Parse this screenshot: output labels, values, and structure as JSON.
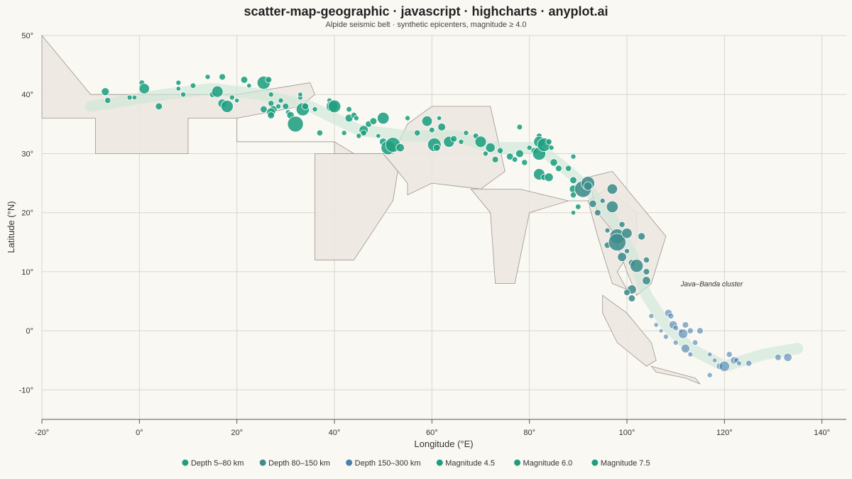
{
  "chart_data": {
    "type": "scatter",
    "title": "scatter-map-geographic · javascript · highcharts · anyplot.ai",
    "subtitle": "Alpide seismic belt · synthetic epicenters, magnitude ≥ 4.0",
    "xlabel": "Longitude (°E)",
    "ylabel": "Latitude (°N)",
    "xlim": [
      -20,
      145
    ],
    "ylim": [
      -15,
      50
    ],
    "x_ticks": [
      -20,
      0,
      20,
      40,
      60,
      80,
      100,
      120,
      140
    ],
    "x_tick_labels": [
      "-20°",
      "0°",
      "20°",
      "40°",
      "60°",
      "80°",
      "100°",
      "120°",
      "140°"
    ],
    "y_ticks": [
      -10,
      0,
      10,
      20,
      30,
      40,
      50
    ],
    "y_tick_labels": [
      "-10°",
      "0°",
      "10°",
      "20°",
      "30°",
      "40°",
      "50°"
    ],
    "grid": true,
    "legend_position": "bottom",
    "annotation": {
      "text": "Java–Banda cluster",
      "lon": 111,
      "lat": 8
    },
    "colors": {
      "background": "#faf8f2",
      "land": "#ebe8e0",
      "land_stroke": "#9b968c",
      "belt": "#cfe6d8",
      "shallow": "#1f9e7f",
      "mid": "#3d8c8c",
      "deep": "#4a7fb0",
      "grid": "#d9d6cf",
      "axis": "#555555"
    },
    "land_polygons": [
      [
        [
          -20,
          50
        ],
        [
          -10,
          40
        ],
        [
          20,
          40
        ],
        [
          35,
          42
        ],
        [
          36,
          40
        ],
        [
          33,
          38
        ],
        [
          20,
          36
        ],
        [
          20,
          32
        ],
        [
          40,
          32
        ],
        [
          40,
          30
        ],
        [
          44,
          30
        ],
        [
          50,
          30
        ],
        [
          55,
          25
        ],
        [
          55,
          23
        ],
        [
          60,
          25
        ],
        [
          70,
          24
        ],
        [
          75,
          27
        ],
        [
          72,
          38
        ],
        [
          60,
          38
        ],
        [
          55,
          35
        ],
        [
          52,
          30
        ],
        [
          48,
          30
        ],
        [
          44,
          30
        ],
        [
          40,
          32
        ],
        [
          20,
          32
        ],
        [
          20,
          36
        ],
        [
          10,
          36
        ],
        [
          10,
          30
        ],
        [
          -9,
          30
        ],
        [
          -9,
          36
        ],
        [
          -20,
          36
        ]
      ],
      [
        [
          40,
          30
        ],
        [
          50,
          30
        ],
        [
          53,
          27
        ],
        [
          52,
          22
        ],
        [
          48,
          17
        ],
        [
          44,
          12
        ],
        [
          36,
          12
        ],
        [
          36,
          30
        ]
      ],
      [
        [
          68,
          24
        ],
        [
          78,
          24
        ],
        [
          88,
          22
        ],
        [
          92,
          22
        ],
        [
          96,
          24
        ],
        [
          102,
          20
        ],
        [
          102,
          15
        ],
        [
          98,
          10
        ],
        [
          100,
          7
        ],
        [
          97,
          8
        ],
        [
          94,
          16
        ],
        [
          92,
          22
        ],
        [
          88,
          22
        ],
        [
          80,
          20
        ],
        [
          77,
          8
        ],
        [
          73,
          8
        ],
        [
          72,
          20
        ]
      ],
      [
        [
          92,
          26
        ],
        [
          97,
          27
        ],
        [
          103,
          21
        ],
        [
          108,
          16
        ],
        [
          105,
          8
        ],
        [
          102,
          6
        ],
        [
          100,
          10
        ],
        [
          97,
          17
        ],
        [
          94,
          20
        ]
      ],
      [
        [
          95,
          6
        ],
        [
          100,
          3
        ],
        [
          105,
          -2
        ],
        [
          106,
          -5
        ],
        [
          104,
          -6
        ],
        [
          98,
          -2
        ],
        [
          95,
          3
        ]
      ],
      [
        [
          105,
          -6
        ],
        [
          114,
          -8
        ],
        [
          115,
          -9
        ],
        [
          112,
          -8
        ],
        [
          106,
          -7
        ]
      ]
    ],
    "belt": [
      [
        -10,
        38
      ],
      [
        5,
        40
      ],
      [
        15,
        41
      ],
      [
        25,
        40
      ],
      [
        35,
        38
      ],
      [
        45,
        34
      ],
      [
        55,
        33
      ],
      [
        65,
        33
      ],
      [
        72,
        31
      ],
      [
        82,
        31
      ],
      [
        88,
        27
      ],
      [
        92,
        24
      ],
      [
        97,
        19
      ],
      [
        101,
        13
      ],
      [
        104,
        6
      ],
      [
        108,
        1
      ],
      [
        113,
        -3
      ],
      [
        120,
        -6
      ],
      [
        128,
        -4
      ],
      [
        135,
        -3
      ]
    ],
    "series": [
      {
        "name": "Depth 5–80 km",
        "depth": "shallow",
        "points": [
          [
            -7,
            40.5,
            5.2
          ],
          [
            -6.5,
            39,
            4.8
          ],
          [
            -2,
            39.5,
            4.6
          ],
          [
            -1,
            39.5,
            4.5
          ],
          [
            0.5,
            42,
            4.7
          ],
          [
            1,
            41,
            5.8
          ],
          [
            4,
            38,
            5.0
          ],
          [
            8,
            42,
            4.6
          ],
          [
            8,
            41,
            4.5
          ],
          [
            9,
            40,
            4.6
          ],
          [
            11,
            41.5,
            4.7
          ],
          [
            14,
            43,
            4.6
          ],
          [
            15,
            40,
            4.8
          ],
          [
            16,
            40.5,
            6.0
          ],
          [
            17,
            38.5,
            5.4
          ],
          [
            17,
            43,
            4.9
          ],
          [
            18,
            38,
            6.2
          ],
          [
            19,
            39.5,
            4.6
          ],
          [
            20,
            39,
            4.5
          ],
          [
            21.5,
            42.5,
            5.0
          ],
          [
            22.5,
            41.5,
            4.5
          ],
          [
            25.5,
            37.5,
            5.0
          ],
          [
            25.5,
            42,
            6.4
          ],
          [
            26.5,
            42.5,
            4.9
          ],
          [
            27,
            40,
            4.6
          ],
          [
            27,
            38.5,
            4.8
          ],
          [
            27.5,
            37.5,
            5.1
          ],
          [
            27,
            37,
            5.4
          ],
          [
            27,
            36.5,
            5.0
          ],
          [
            28.5,
            38,
            4.6
          ],
          [
            29,
            39,
            4.6
          ],
          [
            30,
            38,
            4.9
          ],
          [
            30.5,
            37,
            4.6
          ],
          [
            31,
            36.5,
            5.1
          ],
          [
            32,
            35,
            7.0
          ],
          [
            33,
            39.5,
            4.6
          ],
          [
            33,
            40,
            4.5
          ],
          [
            33.5,
            37.5,
            6.4
          ],
          [
            34,
            38,
            5.0
          ],
          [
            36,
            37.5,
            4.6
          ],
          [
            37,
            33.5,
            4.8
          ],
          [
            39,
            39,
            4.6
          ],
          [
            39.5,
            38,
            6.0
          ],
          [
            40,
            38,
            6.3
          ],
          [
            42,
            33.5,
            4.6
          ],
          [
            43,
            37.5,
            4.7
          ],
          [
            43,
            36,
            5.2
          ],
          [
            44,
            36.5,
            4.8
          ],
          [
            44.5,
            36,
            4.6
          ],
          [
            45,
            33,
            4.6
          ],
          [
            46,
            34,
            5.5
          ],
          [
            46,
            33.5,
            4.8
          ],
          [
            47,
            35,
            4.9
          ],
          [
            48,
            35.5,
            5.0
          ],
          [
            49,
            33,
            4.5
          ],
          [
            50,
            32,
            5.1
          ],
          [
            50,
            36,
            6.1
          ],
          [
            51,
            31,
            6.6
          ],
          [
            52,
            31.5,
            6.8
          ],
          [
            53.5,
            31,
            5.3
          ],
          [
            55,
            36,
            4.6
          ],
          [
            57,
            33.5,
            4.8
          ],
          [
            59,
            35.5,
            5.8
          ],
          [
            60,
            34,
            4.7
          ],
          [
            60.5,
            31.5,
            6.5
          ],
          [
            61,
            31,
            5.0
          ],
          [
            61.5,
            36,
            4.5
          ],
          [
            62,
            34.5,
            5.2
          ],
          [
            63.5,
            32,
            5.9
          ],
          [
            64.5,
            32.5,
            4.9
          ],
          [
            66,
            32,
            4.6
          ],
          [
            67,
            33.5,
            4.6
          ],
          [
            69,
            33,
            4.7
          ],
          [
            70,
            32,
            6.0
          ],
          [
            71,
            30,
            4.6
          ],
          [
            72,
            31,
            5.6
          ],
          [
            73,
            29,
            4.9
          ],
          [
            74,
            30.5,
            4.8
          ],
          [
            76,
            29.5,
            5.0
          ],
          [
            77,
            29,
            4.7
          ],
          [
            78,
            30,
            5.2
          ],
          [
            78,
            34.5,
            4.7
          ],
          [
            79,
            28.5,
            4.8
          ],
          [
            80,
            31,
            4.6
          ],
          [
            81,
            30.5,
            4.9
          ],
          [
            82,
            30,
            6.4
          ],
          [
            82,
            33,
            4.7
          ],
          [
            82,
            32,
            5.9
          ],
          [
            83,
            31.5,
            6.5
          ],
          [
            84,
            32,
            4.8
          ],
          [
            84.5,
            31,
            4.6
          ],
          [
            85,
            28.5,
            5.1
          ],
          [
            86,
            27.5,
            4.9
          ],
          [
            82,
            26.5,
            6.0
          ],
          [
            83,
            26,
            4.9
          ],
          [
            84,
            26,
            5.4
          ],
          [
            88,
            27.5,
            4.8
          ],
          [
            89,
            29.5,
            4.6
          ],
          [
            89,
            25.5,
            5.0
          ],
          [
            89,
            24,
            5.2
          ],
          [
            89,
            23,
            4.8
          ],
          [
            89,
            20,
            4.5
          ],
          [
            90,
            21,
            4.7
          ]
        ]
      },
      {
        "name": "Depth 80–150 km",
        "depth": "mid",
        "points": [
          [
            91,
            24,
            7.2
          ],
          [
            92,
            25,
            6.5
          ],
          [
            92,
            24.5,
            5.4
          ],
          [
            93,
            21.5,
            5.1
          ],
          [
            94,
            20,
            4.9
          ],
          [
            95,
            22,
            4.6
          ],
          [
            96,
            14.5,
            4.9
          ],
          [
            96,
            17,
            4.6
          ],
          [
            97,
            21,
            6.1
          ],
          [
            97,
            24,
            5.8
          ],
          [
            98,
            16,
            6.8
          ],
          [
            98,
            15,
            7.4
          ],
          [
            99,
            12.5,
            5.5
          ],
          [
            99,
            18,
            4.8
          ],
          [
            100,
            16.5,
            5.8
          ],
          [
            100,
            13.5,
            4.6
          ],
          [
            101,
            11.5,
            5.0
          ],
          [
            102,
            11,
            6.4
          ],
          [
            103,
            16,
            5.1
          ],
          [
            104,
            12,
            4.8
          ],
          [
            104,
            10,
            4.9
          ],
          [
            104,
            8.5,
            5.3
          ],
          [
            101,
            7,
            5.5
          ],
          [
            101,
            5.5,
            5.0
          ],
          [
            100,
            6.5,
            4.9
          ]
        ]
      },
      {
        "name": "Depth 150–300 km",
        "depth": "deep",
        "points": [
          [
            105,
            2.5,
            4.6
          ],
          [
            106,
            1,
            4.5
          ],
          [
            107,
            0,
            4.4
          ],
          [
            108,
            -1,
            4.6
          ],
          [
            108.5,
            3,
            5.1
          ],
          [
            109,
            2.5,
            4.8
          ],
          [
            109.5,
            1,
            5.3
          ],
          [
            110,
            0.5,
            4.7
          ],
          [
            110,
            -2,
            4.6
          ],
          [
            111,
            0,
            4.4
          ],
          [
            111.5,
            -0.5,
            5.6
          ],
          [
            112,
            1,
            4.9
          ],
          [
            112,
            -3,
            5.4
          ],
          [
            113,
            -4,
            4.6
          ],
          [
            113,
            0,
            4.8
          ],
          [
            114,
            -2,
            4.7
          ],
          [
            115,
            0,
            4.9
          ],
          [
            117,
            -4,
            4.5
          ],
          [
            117,
            -7.5,
            4.6
          ],
          [
            118,
            -5,
            4.5
          ],
          [
            119,
            -6,
            4.9
          ],
          [
            120,
            -6,
            5.8
          ],
          [
            121,
            -4,
            4.8
          ],
          [
            122,
            -5,
            5.1
          ],
          [
            122.5,
            -5,
            4.7
          ],
          [
            123,
            -5.5,
            4.6
          ],
          [
            125,
            -5.5,
            4.8
          ],
          [
            131,
            -4.5,
            4.9
          ],
          [
            133,
            -4.5,
            5.3
          ]
        ]
      }
    ],
    "legend": [
      {
        "name": "Depth 5–80 km",
        "color": "#1f9e7f"
      },
      {
        "name": "Depth 80–150 km",
        "color": "#3d8c8c"
      },
      {
        "name": "Depth 150–300 km",
        "color": "#4a7fb0"
      },
      {
        "name": "Magnitude 4.5",
        "color": "#1f9e7f"
      },
      {
        "name": "Magnitude 6.0",
        "color": "#1f9e7f"
      },
      {
        "name": "Magnitude 7.5",
        "color": "#1f9e7f"
      }
    ]
  }
}
